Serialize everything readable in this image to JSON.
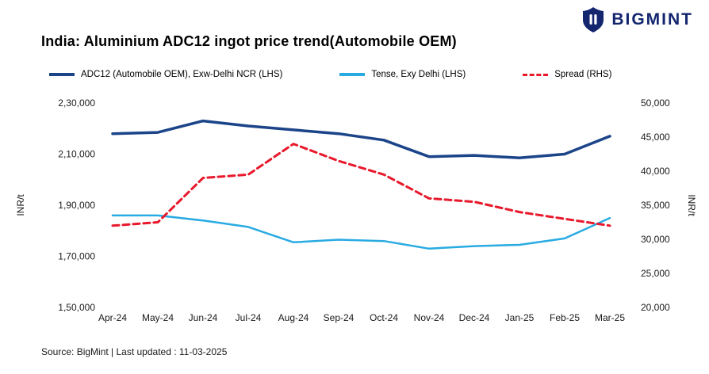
{
  "logo": {
    "brand": "BIGMINT"
  },
  "title": "India: Aluminium ADC12 ingot price trend(Automobile OEM)",
  "legend": [
    {
      "label": "ADC12 (Automobile OEM), Exw-Delhi NCR (LHS)",
      "color": "#1b4489",
      "style": "solid"
    },
    {
      "label": "Tense, Exy Delhi (LHS)",
      "color": "#29abe2",
      "style": "solid"
    },
    {
      "label": "Spread (RHS)",
      "color": "#e8192c",
      "style": "dashed"
    }
  ],
  "source": "Source: BigMint | Last updated : 11-03-2025",
  "chart_data": {
    "type": "line",
    "categories": [
      "Apr-24",
      "May-24",
      "Jun-24",
      "Jul-24",
      "Aug-24",
      "Sep-24",
      "Oct-24",
      "Nov-24",
      "Dec-24",
      "Jan-25",
      "Feb-25",
      "Mar-25"
    ],
    "series": [
      {
        "name": "ADC12 (Automobile OEM), Exw-Delhi NCR (LHS)",
        "axis": "left",
        "color": "#1b4489",
        "width": 3.5,
        "dash": "",
        "values": [
          218000,
          218500,
          223000,
          221000,
          219500,
          218000,
          215500,
          209000,
          209500,
          208500,
          210000,
          217000
        ]
      },
      {
        "name": "Tense, Exy Delhi (LHS)",
        "axis": "left",
        "color": "#29abe2",
        "width": 2.5,
        "dash": "",
        "values": [
          186000,
          186000,
          184000,
          181500,
          175500,
          176500,
          176000,
          173000,
          174000,
          174500,
          177000,
          185000
        ]
      },
      {
        "name": "Spread (RHS)",
        "axis": "right",
        "color": "#e8192c",
        "width": 3,
        "dash": "8 5",
        "values": [
          32000,
          32500,
          39000,
          39500,
          44000,
          41500,
          39500,
          36000,
          35500,
          34000,
          33000,
          32000
        ]
      }
    ],
    "left_axis": {
      "label": "INR/t",
      "min": 150000,
      "max": 230000,
      "ticks": [
        230000,
        210000,
        190000,
        170000,
        150000
      ],
      "tick_labels": [
        "2,30,000",
        "2,10,000",
        "1,90,000",
        "1,70,000",
        "1,50,000"
      ]
    },
    "right_axis": {
      "label": "INR/t",
      "min": 20000,
      "max": 50000,
      "ticks": [
        50000,
        45000,
        40000,
        35000,
        30000,
        25000,
        20000
      ],
      "tick_labels": [
        "50,000",
        "45,000",
        "40,000",
        "35,000",
        "30,000",
        "25,000",
        "20,000"
      ]
    },
    "grid": false,
    "legend_position": "top"
  }
}
